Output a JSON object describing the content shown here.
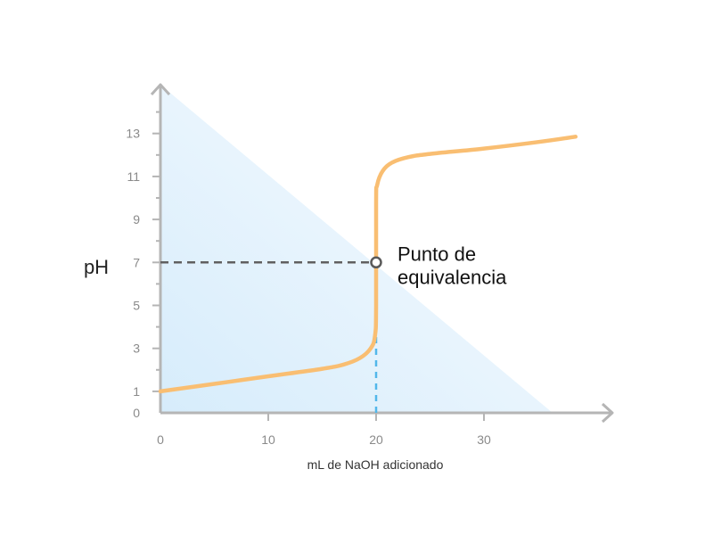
{
  "chart_data": {
    "type": "line",
    "xlabel": "mL de NaOH adicionado",
    "ylabel": "pH",
    "xlim": [
      0,
      42
    ],
    "ylim": [
      0,
      14.5
    ],
    "x_ticks": [
      {
        "value": 0,
        "label": "0"
      },
      {
        "value": 10,
        "label": "10"
      },
      {
        "value": 20,
        "label": "20"
      },
      {
        "value": 30,
        "label": "30"
      }
    ],
    "y_ticks": [
      {
        "value": 0,
        "label": "0"
      },
      {
        "value": 1,
        "label": "1"
      },
      {
        "value": 3,
        "label": "3"
      },
      {
        "value": 5,
        "label": "5"
      },
      {
        "value": 7,
        "label": "7"
      },
      {
        "value": 9,
        "label": "9"
      },
      {
        "value": 11,
        "label": "11"
      },
      {
        "value": 13,
        "label": "13"
      }
    ],
    "grid": false,
    "series": [
      {
        "color": "#f9be72",
        "x": [
          0,
          5,
          10,
          15,
          17,
          18.5,
          19.5,
          19.9,
          20,
          20,
          20.1,
          20.6,
          21.5,
          23,
          25,
          30,
          35,
          38.5
        ],
        "y": [
          1,
          1.35,
          1.7,
          2.05,
          2.25,
          2.55,
          3.0,
          3.6,
          5.0,
          9.8,
          10.6,
          11.25,
          11.65,
          11.9,
          12.05,
          12.3,
          12.6,
          12.85
        ]
      }
    ],
    "equivalence_point": {
      "x": 20,
      "y": 7,
      "label_lines": [
        "Punto de",
        "equivalencia"
      ]
    },
    "colors": {
      "axis": "#b5b5b5",
      "curve": "#f9be72",
      "guide_horizontal": "#606060",
      "guide_vertical": "#52b7ea",
      "fill_light": "#d6ecfb"
    }
  }
}
